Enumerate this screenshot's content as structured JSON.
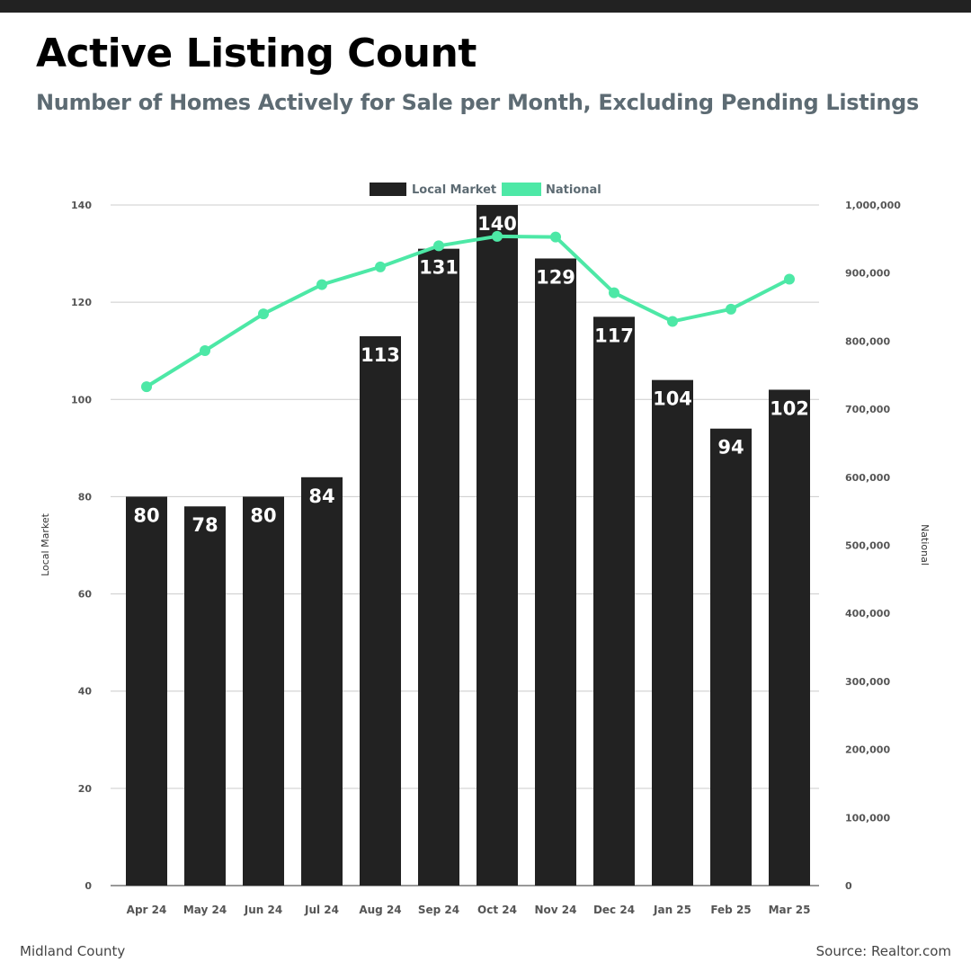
{
  "title": "Active Listing Count",
  "subtitle": "Number of Homes Actively for Sale per Month, Excluding Pending Listings",
  "footer": {
    "left": "Midland County",
    "right": "Source: Realtor.com"
  },
  "colors": {
    "bar": "#222222",
    "line": "#4de8a6",
    "subtitle": "#5d6b73",
    "grid": "#cccccc"
  },
  "chart_data": {
    "type": "bar",
    "categories": [
      "Apr 24",
      "May 24",
      "Jun 24",
      "Jul 24",
      "Aug 24",
      "Sep 24",
      "Oct 24",
      "Nov 24",
      "Dec 24",
      "Jan 25",
      "Feb 25",
      "Mar 25"
    ],
    "series": [
      {
        "name": "Local Market",
        "type": "bar",
        "axis": "left",
        "values": [
          80,
          78,
          80,
          84,
          113,
          131,
          140,
          129,
          117,
          104,
          94,
          102
        ],
        "data_labels": [
          "80",
          "78",
          "80",
          "84",
          "113",
          "131",
          "140",
          "129",
          "117",
          "104",
          "94",
          "102"
        ]
      },
      {
        "name": "National",
        "type": "line",
        "axis": "right",
        "values": [
          733000,
          786000,
          840000,
          883000,
          909000,
          940000,
          954000,
          953000,
          871000,
          829000,
          847000,
          891000
        ]
      }
    ],
    "ylabel": "Local Market",
    "y2label": "National",
    "ylim": [
      0,
      140
    ],
    "y2lim": [
      0,
      1000000
    ],
    "yticks": [
      "0",
      "20",
      "40",
      "60",
      "80",
      "100",
      "120",
      "140"
    ],
    "y2ticks": [
      "0",
      "100,000",
      "200,000",
      "300,000",
      "400,000",
      "500,000",
      "600,000",
      "700,000",
      "800,000",
      "900,000",
      "1,000,000"
    ],
    "legend": [
      "Local Market",
      "National"
    ],
    "legend_position": "top-center",
    "grid": true
  }
}
